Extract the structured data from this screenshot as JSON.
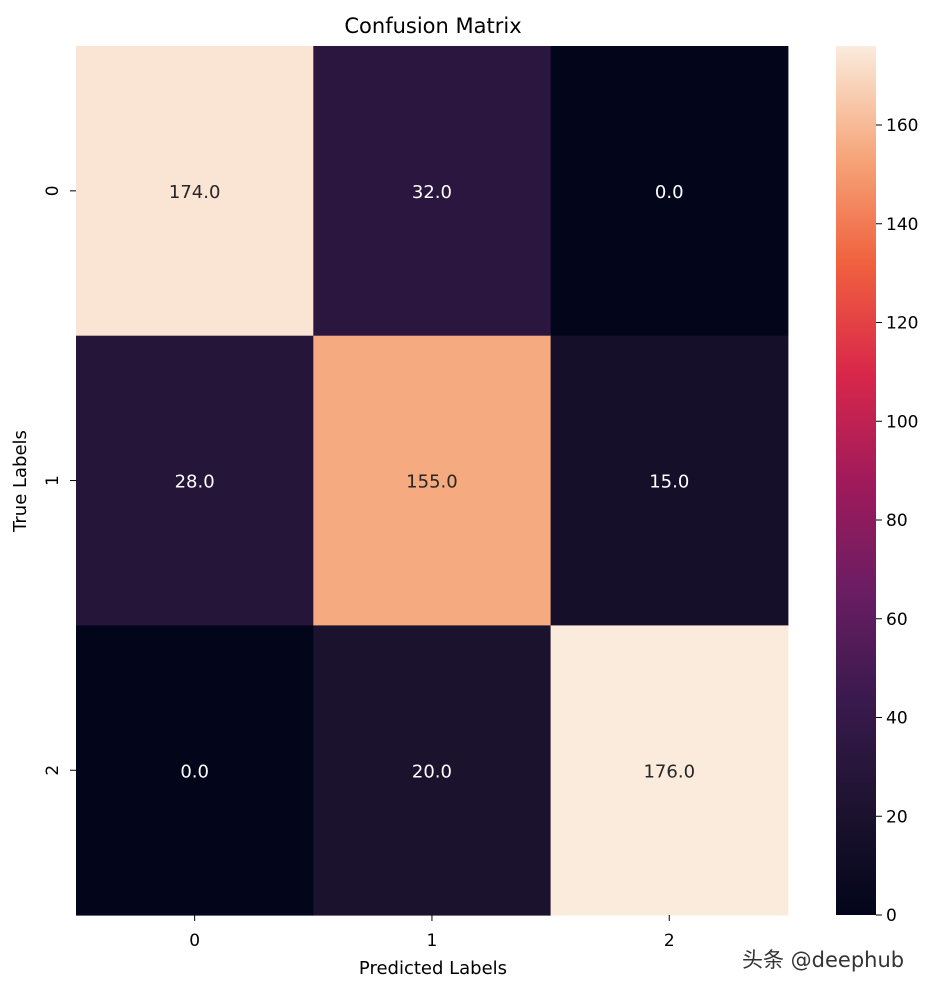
{
  "chart_data": {
    "type": "heatmap",
    "title": "Confusion Matrix",
    "xlabel": "Predicted Labels",
    "ylabel": "True Labels",
    "x_categories": [
      "0",
      "1",
      "2"
    ],
    "y_categories": [
      "0",
      "1",
      "2"
    ],
    "values": [
      [
        174.0,
        32.0,
        0.0
      ],
      [
        28.0,
        155.0,
        15.0
      ],
      [
        0.0,
        20.0,
        176.0
      ]
    ],
    "annotations": [
      [
        "174.0",
        "32.0",
        "0.0"
      ],
      [
        "28.0",
        "155.0",
        "15.0"
      ],
      [
        "0.0",
        "20.0",
        "176.0"
      ]
    ],
    "colormap": "rocket",
    "colorbar": {
      "range": [
        0,
        176
      ],
      "ticks": [
        0,
        20,
        40,
        60,
        80,
        100,
        120,
        140,
        160
      ]
    }
  },
  "watermark": "头条 @deephub"
}
